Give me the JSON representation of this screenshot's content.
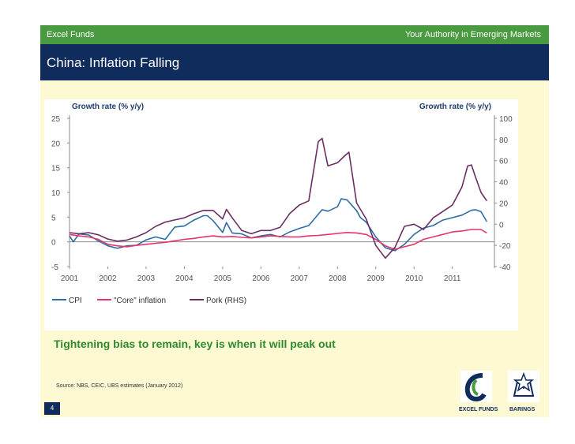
{
  "header": {
    "brand": "Excel Funds",
    "tagline": "Your Authority in Emerging Markets",
    "title": "China: Inflation Falling"
  },
  "colors": {
    "top_bar": "#4a9a3f",
    "title_bar": "#0f2c5c",
    "slide_bg": "#fdf9d3",
    "cpi": "#2e6da4",
    "core": "#e8336b",
    "pork": "#6b2d63",
    "subtitle": "#2e8b2e"
  },
  "chart_data": {
    "type": "line",
    "left_axis_label": "Growth rate (% y/y)",
    "right_axis_label": "Growth rate (% y/y)",
    "left_ticks": [
      "25",
      "20",
      "15",
      "10",
      "5",
      "0",
      "-5"
    ],
    "right_ticks": [
      "100",
      "80",
      "60",
      "40",
      "20",
      "0",
      "-20",
      "-40"
    ],
    "x_ticks": [
      "2001",
      "2002",
      "2003",
      "2004",
      "2005",
      "2006",
      "2007",
      "2008",
      "2009",
      "2010",
      "2011"
    ],
    "ylim_left": [
      -5,
      25
    ],
    "ylim_right": [
      -40,
      100
    ],
    "xlim": [
      2001,
      2012.1
    ],
    "grid": false,
    "legend_position": "bottom-left",
    "series": [
      {
        "name": "CPI",
        "axis": "left",
        "color": "#2e6da4",
        "x": [
          2001.0,
          2001.1,
          2001.25,
          2001.5,
          2001.75,
          2002.0,
          2002.25,
          2002.5,
          2002.75,
          2003.0,
          2003.25,
          2003.5,
          2003.75,
          2004.0,
          2004.25,
          2004.5,
          2004.6,
          2004.75,
          2005.0,
          2005.1,
          2005.25,
          2005.5,
          2005.75,
          2006.0,
          2006.25,
          2006.5,
          2006.75,
          2007.0,
          2007.25,
          2007.5,
          2007.6,
          2007.75,
          2008.0,
          2008.1,
          2008.25,
          2008.5,
          2008.6,
          2008.75,
          2009.0,
          2009.25,
          2009.5,
          2009.75,
          2010.0,
          2010.25,
          2010.5,
          2010.75,
          2011.0,
          2011.25,
          2011.5,
          2011.6,
          2011.75,
          2011.9
        ],
        "y": [
          1.2,
          0.0,
          1.6,
          1.4,
          0.2,
          -0.8,
          -1.3,
          -0.8,
          -0.7,
          0.4,
          1.0,
          0.5,
          3.0,
          3.2,
          4.4,
          5.3,
          5.3,
          4.3,
          1.9,
          3.9,
          1.8,
          1.6,
          0.8,
          1.2,
          1.5,
          1.0,
          2.0,
          2.7,
          3.3,
          5.6,
          6.5,
          6.2,
          7.1,
          8.7,
          8.5,
          6.3,
          4.9,
          4.0,
          1.0,
          -1.2,
          -1.8,
          -0.5,
          1.5,
          2.8,
          3.3,
          4.4,
          4.9,
          5.4,
          6.4,
          6.5,
          6.1,
          4.1
        ]
      },
      {
        "name": "\"Core\" inflation",
        "axis": "left",
        "color": "#e8336b",
        "x": [
          2001.0,
          2001.25,
          2001.5,
          2001.75,
          2002.0,
          2002.25,
          2002.5,
          2002.75,
          2003.0,
          2003.25,
          2003.5,
          2003.75,
          2004.0,
          2004.25,
          2004.5,
          2004.75,
          2005.0,
          2005.25,
          2005.5,
          2005.75,
          2006.0,
          2006.25,
          2006.5,
          2006.75,
          2007.0,
          2007.25,
          2007.5,
          2007.75,
          2008.0,
          2008.25,
          2008.5,
          2008.75,
          2009.0,
          2009.25,
          2009.5,
          2009.75,
          2010.0,
          2010.25,
          2010.5,
          2010.75,
          2011.0,
          2011.25,
          2011.5,
          2011.75,
          2011.9
        ],
        "y": [
          1.5,
          1.2,
          1.0,
          0.5,
          -0.5,
          -0.8,
          -1.0,
          -0.7,
          -0.5,
          -0.3,
          -0.1,
          0.2,
          0.5,
          0.7,
          1.0,
          1.2,
          1.0,
          1.1,
          0.9,
          0.8,
          1.0,
          1.2,
          1.1,
          1.0,
          1.0,
          1.2,
          1.3,
          1.5,
          1.7,
          1.9,
          1.8,
          1.5,
          0.5,
          -0.8,
          -1.5,
          -1.0,
          -0.5,
          0.5,
          1.0,
          1.5,
          2.0,
          2.2,
          2.5,
          2.5,
          1.8
        ]
      },
      {
        "name": "Pork (RHS)",
        "axis": "right",
        "color": "#6b2d63",
        "x": [
          2001.0,
          2001.25,
          2001.5,
          2001.75,
          2002.0,
          2002.25,
          2002.5,
          2002.75,
          2003.0,
          2003.25,
          2003.5,
          2003.75,
          2004.0,
          2004.25,
          2004.5,
          2004.75,
          2005.0,
          2005.1,
          2005.25,
          2005.5,
          2005.75,
          2006.0,
          2006.25,
          2006.5,
          2006.75,
          2007.0,
          2007.25,
          2007.5,
          2007.6,
          2007.75,
          2008.0,
          2008.2,
          2008.3,
          2008.5,
          2008.75,
          2009.0,
          2009.25,
          2009.5,
          2009.75,
          2010.0,
          2010.25,
          2010.5,
          2010.75,
          2011.0,
          2011.25,
          2011.4,
          2011.5,
          2011.6,
          2011.75,
          2011.9
        ],
        "y": [
          -8,
          -9,
          -8,
          -10,
          -14,
          -16,
          -15,
          -12,
          -8,
          -2,
          2,
          4,
          6,
          10,
          13,
          13,
          5,
          14,
          6,
          -6,
          -9,
          -6,
          -6,
          -3,
          10,
          18,
          22,
          78,
          81,
          55,
          58,
          65,
          68,
          20,
          5,
          -20,
          -32,
          -22,
          -2,
          0,
          -5,
          6,
          12,
          18,
          35,
          55,
          56,
          45,
          30,
          22
        ]
      }
    ]
  },
  "subtitle": "Tightening bias to remain, key is when it will peak out",
  "source": "Source: NBS, CEIC, UBS estimates (January 2012)",
  "page_number": "4",
  "logos": {
    "left": "EXCEL FUNDS",
    "right": "BARINGS"
  }
}
